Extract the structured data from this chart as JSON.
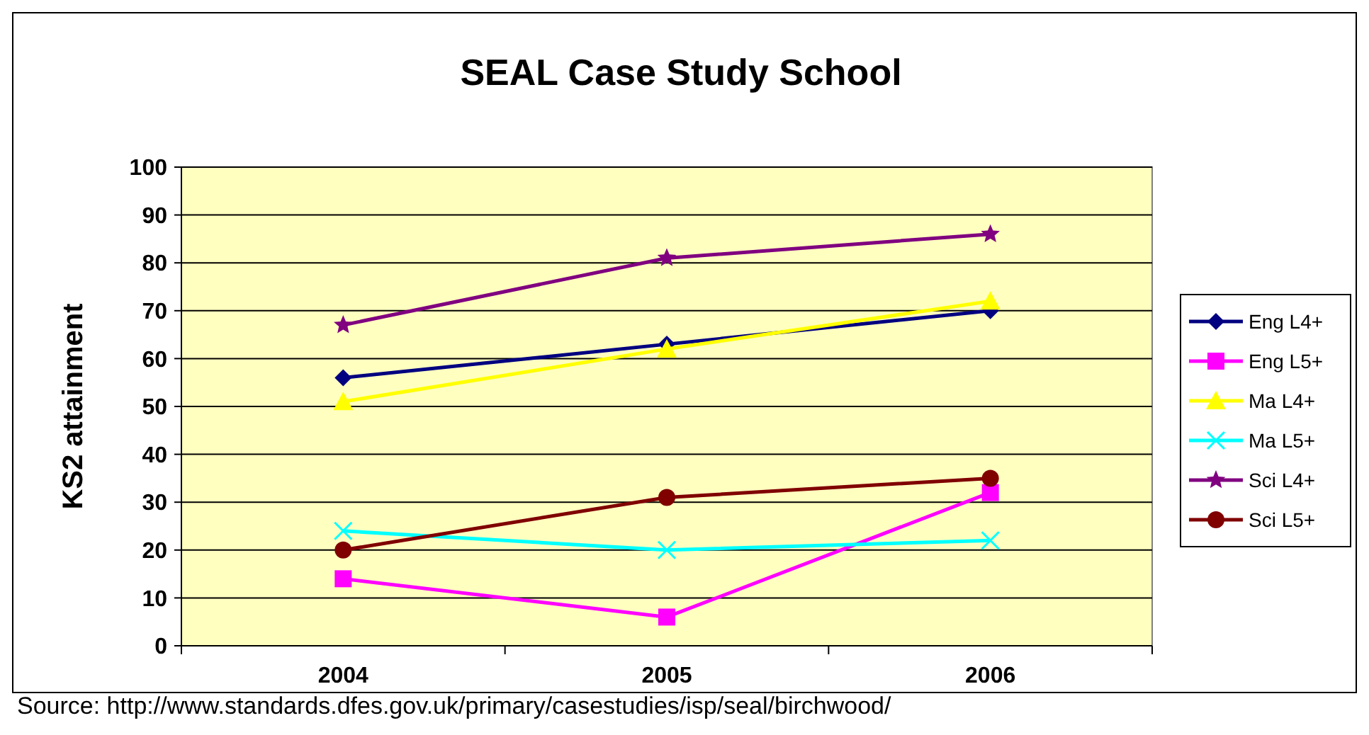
{
  "chart_data": {
    "type": "line",
    "title": "SEAL Case Study School",
    "ylabel": "KS2 attainment",
    "categories": [
      "2004",
      "2005",
      "2006"
    ],
    "series": [
      {
        "name": "Eng L4+",
        "color": "#000080",
        "marker": "diamond",
        "values": [
          56,
          63,
          70
        ]
      },
      {
        "name": "Eng L5+",
        "color": "#ff00ff",
        "marker": "square",
        "values": [
          14,
          6,
          32
        ]
      },
      {
        "name": "Ma L4+",
        "color": "#ffff00",
        "marker": "triangle",
        "values": [
          51,
          62,
          72
        ]
      },
      {
        "name": "Ma L5+",
        "color": "#00ffff",
        "marker": "cross",
        "values": [
          24,
          20,
          22
        ]
      },
      {
        "name": "Sci L4+",
        "color": "#800080",
        "marker": "star",
        "values": [
          67,
          81,
          86
        ]
      },
      {
        "name": "Sci L5+",
        "color": "#800000",
        "marker": "circle",
        "values": [
          20,
          31,
          35
        ]
      }
    ],
    "ylim": [
      0,
      100
    ],
    "yticks": [
      0,
      10,
      20,
      30,
      40,
      50,
      60,
      70,
      80,
      90,
      100
    ],
    "grid": "y",
    "legend": "right",
    "annotations": [
      "Source: http://www.standards.dfes.gov.uk/primary/casestudies/isp/seal/birchwood/"
    ]
  }
}
